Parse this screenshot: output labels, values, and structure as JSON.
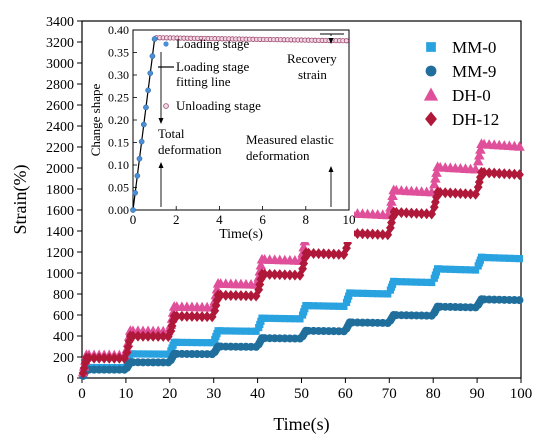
{
  "chart_data": [
    {
      "type": "scatter",
      "xlabel": "Time(s)",
      "ylabel": "Strain(%)",
      "xlim": [
        0,
        100
      ],
      "ylim": [
        0,
        3400
      ],
      "xticks": [
        0,
        10,
        20,
        30,
        40,
        50,
        60,
        70,
        80,
        90,
        100
      ],
      "yticks": [
        0,
        200,
        400,
        600,
        800,
        1000,
        1200,
        1400,
        1600,
        1800,
        2000,
        2200,
        2400,
        2600,
        2800,
        3000,
        3200,
        3400
      ],
      "legend_position": "top-right",
      "step_times": [
        0,
        10,
        20,
        30,
        40,
        50,
        60,
        70,
        80,
        90
      ],
      "series": [
        {
          "name": "MM-0",
          "marker": "square",
          "color": "#29A3E0",
          "levels": [
            100,
            230,
            340,
            450,
            570,
            690,
            810,
            920,
            1040,
            1150
          ]
        },
        {
          "name": "MM-9",
          "marker": "circle",
          "color": "#1F6E9C",
          "levels": [
            80,
            150,
            230,
            300,
            380,
            450,
            530,
            600,
            680,
            750
          ]
        },
        {
          "name": "DH-0",
          "marker": "triangle",
          "color": "#E0509A",
          "levels": [
            220,
            450,
            680,
            900,
            1130,
            1360,
            1570,
            1790,
            2010,
            2230
          ]
        },
        {
          "name": "DH-12",
          "marker": "diamond",
          "color": "#B0183A",
          "levels": [
            190,
            400,
            590,
            790,
            990,
            1190,
            1380,
            1580,
            1770,
            1960
          ]
        }
      ]
    },
    {
      "type": "scatter",
      "xlabel": "Time(s)",
      "ylabel": "Change shape",
      "xlim": [
        0,
        10
      ],
      "ylim": [
        0,
        0.4
      ],
      "xticks": [
        0,
        2,
        4,
        6,
        8,
        10
      ],
      "yticks": [
        0.0,
        0.05,
        0.1,
        0.15,
        0.2,
        0.25,
        0.3,
        0.35,
        0.4
      ],
      "loading": {
        "x": [
          0,
          0.1,
          0.2,
          0.3,
          0.4,
          0.5,
          0.6,
          0.7,
          0.8,
          0.9,
          1.0
        ],
        "y": [
          0,
          0.038,
          0.076,
          0.114,
          0.152,
          0.19,
          0.228,
          0.266,
          0.304,
          0.342,
          0.38
        ]
      },
      "unloading": {
        "x_start": 1.0,
        "x_end": 10.0,
        "y_start": 0.383,
        "y_end": 0.376
      },
      "legend": [
        "Loading stage",
        "Loading stage",
        "fitting line",
        "Unloading stage"
      ],
      "annotations": {
        "total": [
          "Total",
          "deformation"
        ],
        "elastic": [
          "Measured elastic",
          "deformation"
        ],
        "recovery": [
          "Recovery",
          "strain"
        ]
      }
    }
  ]
}
